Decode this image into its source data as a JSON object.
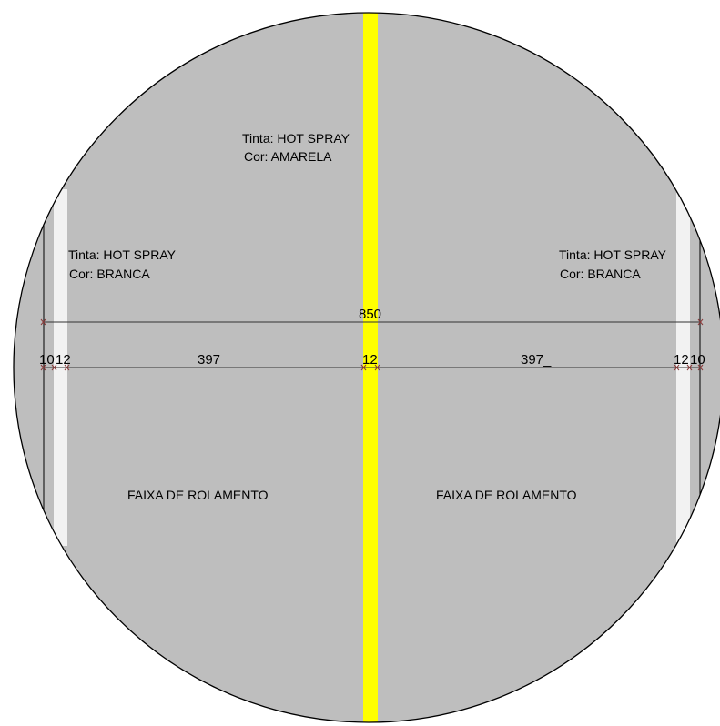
{
  "colors": {
    "background": "#ffffff",
    "pavement": "#bebebe",
    "outline": "#000000",
    "center_line": "#ffff00",
    "edge_line": "#f2f2f2"
  },
  "center_note": {
    "paint": "Tinta: HOT SPRAY",
    "color": "Cor: AMARELA"
  },
  "left_note": {
    "paint": "Tinta: HOT SPRAY",
    "color": "Cor: BRANCA"
  },
  "right_note": {
    "paint": "Tinta: HOT SPRAY",
    "color": "Cor: BRANCA"
  },
  "dimensions": {
    "total": "850",
    "left_shoulder": "10",
    "left_edge_line": "12",
    "left_lane": "397",
    "center_line": "12",
    "right_lane": "397_",
    "right_edge_line": "12",
    "right_shoulder": "10"
  },
  "lanes": {
    "left": "FAIXA DE ROLAMENTO",
    "right": "FAIXA DE ROLAMENTO"
  }
}
